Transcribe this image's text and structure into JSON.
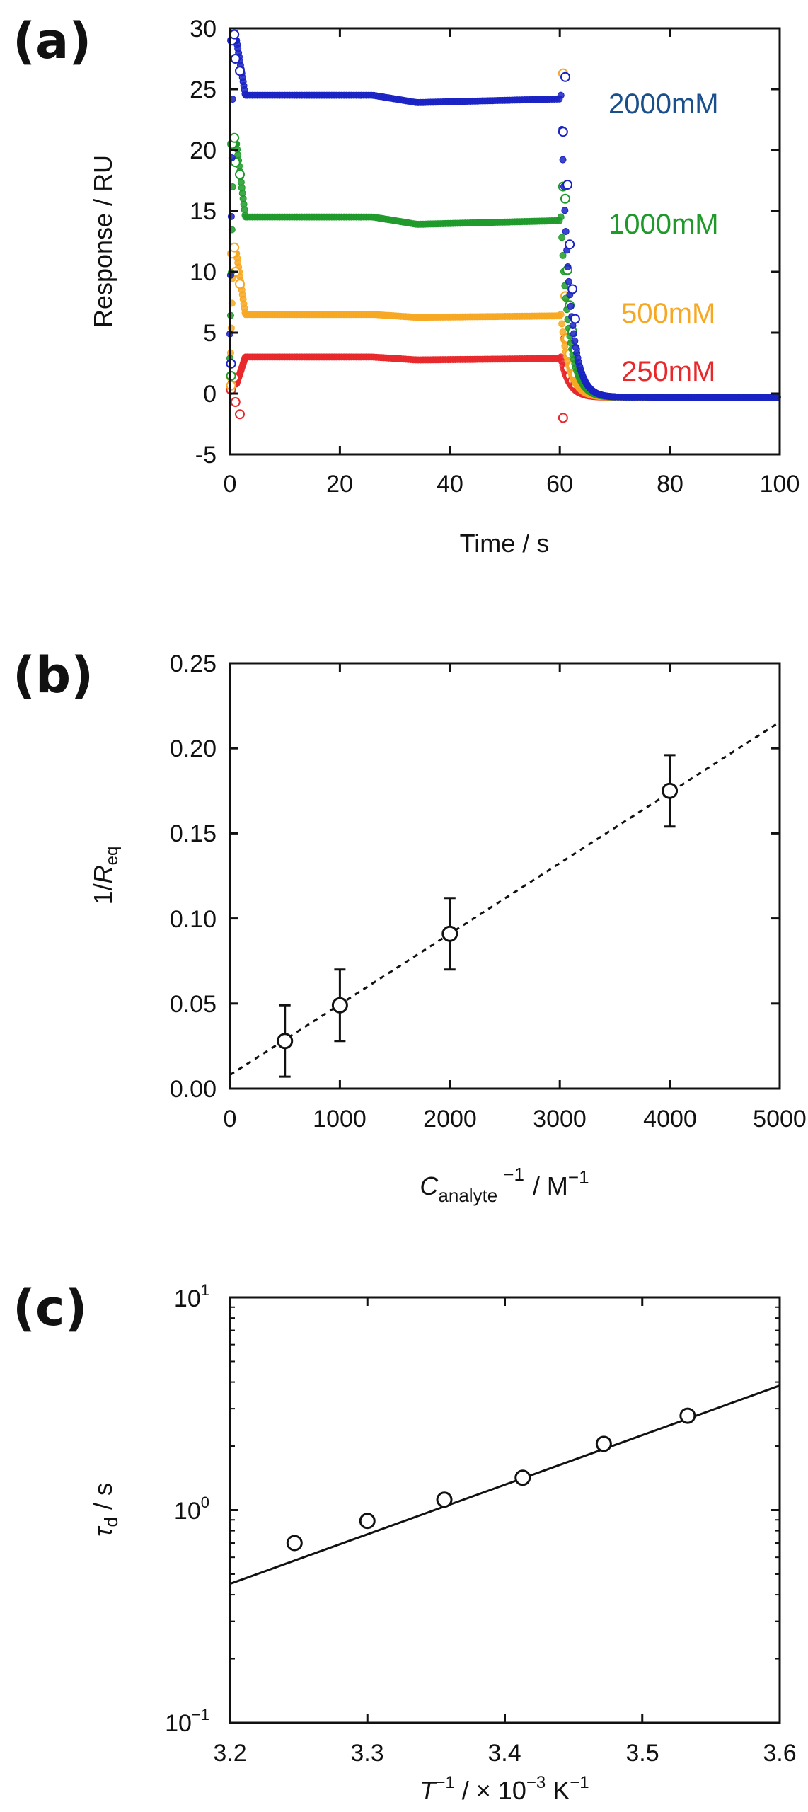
{
  "colors": {
    "s250": "#e8282b",
    "s500": "#f7a823",
    "s1000": "#1f9a2a",
    "s2000": "#1a22c4",
    "s2000_label": "#1a4f8c",
    "frame": "#111111"
  },
  "chart_data": [
    {
      "panel": "(a)",
      "type": "scatter",
      "xlabel": "Time / s",
      "ylabel": "Response / RU",
      "xlim": [
        0,
        100
      ],
      "ylim": [
        -5,
        30
      ],
      "x_ticks": [
        "0",
        "20",
        "40",
        "60",
        "80",
        "100"
      ],
      "y_ticks": [
        "30",
        "25",
        "20",
        "15",
        "10",
        "5",
        "0",
        "-5"
      ],
      "series": [
        {
          "name": "250mM",
          "color_key": "s250",
          "plateau": 3.0,
          "peak": 0.8,
          "spike": -2.0,
          "end": -0.3
        },
        {
          "name": "500mM",
          "color_key": "s500",
          "plateau": 6.5,
          "peak": 11.5,
          "spike": 26.3,
          "end": -0.3
        },
        {
          "name": "1000mM",
          "color_key": "s1000",
          "plateau": 14.5,
          "peak": 20.5,
          "spike": 17.0,
          "end": -0.3
        },
        {
          "name": "2000mM",
          "color_key": "s2000",
          "plateau": 24.5,
          "peak": 29.0,
          "spike": 21.5,
          "end": -0.3
        }
      ]
    },
    {
      "panel": "(b)",
      "type": "scatter",
      "xlabel_main": "C",
      "xlabel_sub": "analyte",
      "xlabel_sup": "−1",
      "xlabel_units": "/ M",
      "xlabel_units_sup": "−1",
      "ylabel_main": "1/",
      "ylabel_var": "R",
      "ylabel_sub": "eq",
      "xlim": [
        0,
        5000
      ],
      "ylim": [
        0,
        0.25
      ],
      "x_ticks": [
        "0",
        "1000",
        "2000",
        "3000",
        "4000",
        "5000"
      ],
      "y_ticks": [
        "0.25",
        "0.20",
        "0.15",
        "0.10",
        "0.05",
        "0.00"
      ],
      "points": [
        {
          "x": 500,
          "y": 0.028,
          "err": 0.021
        },
        {
          "x": 1000,
          "y": 0.049,
          "err": 0.021
        },
        {
          "x": 2000,
          "y": 0.091,
          "err": 0.021
        },
        {
          "x": 4000,
          "y": 0.175,
          "err": 0.021
        }
      ],
      "fit": {
        "style": "dashed",
        "slope": 4.15e-05,
        "intercept": 0.008
      }
    },
    {
      "panel": "(c)",
      "type": "scatter",
      "yscale": "log",
      "xlabel_var": "T",
      "xlabel_sup": "−1",
      "xlabel_units": " / × 10",
      "xlabel_units_sup": "−3",
      "xlabel_unit_k": " K",
      "xlabel_unit_k_sup": "−1",
      "ylabel_var": "τ",
      "ylabel_sub": "d",
      "ylabel_units": " / s",
      "xlim": [
        3.2,
        3.6
      ],
      "ylim_log10": [
        -1,
        1
      ],
      "x_ticks": [
        "3.2",
        "3.3",
        "3.4",
        "3.5",
        "3.6"
      ],
      "y_ticks_base": "10",
      "y_ticks_exp": [
        "1",
        "0",
        "−1"
      ],
      "points": [
        {
          "x": 3.247,
          "y": 0.7
        },
        {
          "x": 3.3,
          "y": 0.89
        },
        {
          "x": 3.356,
          "y": 1.12
        },
        {
          "x": 3.413,
          "y": 1.42
        },
        {
          "x": 3.472,
          "y": 2.05
        },
        {
          "x": 3.533,
          "y": 2.78
        }
      ],
      "fit": {
        "style": "solid",
        "x0": 3.2,
        "y0": 0.45,
        "x1": 3.6,
        "y1": 3.85
      }
    }
  ]
}
